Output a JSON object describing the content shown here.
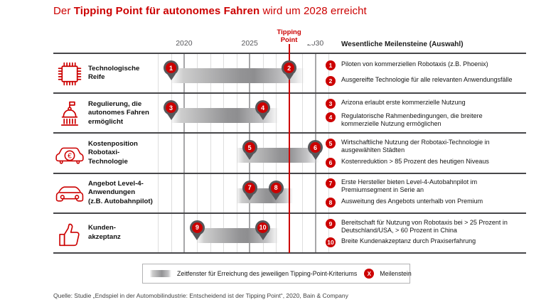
{
  "title": {
    "prefix": "Der ",
    "highlight": "Tipping Point für autonomes Fahren",
    "suffix": " wird um 2028 erreicht"
  },
  "milestones_header": "Wesentliche Meilensteine (Auswahl)",
  "legend": {
    "window_label": "Zeitfenster für Erreichung des jeweiligen Tipping-Point-Kriteriums",
    "milestone_symbol": "X",
    "milestone_label": "Meilenstein"
  },
  "source": "Quelle: Studie „Endspiel in der Automobilindustrie: Entscheidend ist der Tipping Point“, 2020, Bain & Company",
  "colors": {
    "red": "#cc0000",
    "pin_gray": "#57575a",
    "grid_light": "#dedede",
    "grid_heavy": "#a7a7a9",
    "separator": "#47474a"
  },
  "chart_data": {
    "type": "timeline",
    "title": "Der Tipping Point für autonomes Fahren wird um 2028 erreicht",
    "axis": {
      "year_min": 2018,
      "year_max": 2031,
      "tick_years": [
        2020,
        2025,
        2030
      ],
      "tipping_point_year": 2028,
      "tipping_point_label": "Tipping\nPoint"
    },
    "rows": [
      {
        "label": "Technologische\nReife",
        "icon": "chip-icon",
        "window": {
          "start": 2019,
          "end": 2029.2
        },
        "milestones": [
          {
            "n": "1",
            "year": 2019,
            "text": "Piloten von kommerziellen Robotaxis (z.B. Phoenix)"
          },
          {
            "n": "2",
            "year": 2028,
            "text": "Ausgereifte Technologie für alle relevanten Anwendungsfälle"
          }
        ]
      },
      {
        "label": "Regulierung, die\nautonomes Fahren\nermöglicht",
        "icon": "government-icon",
        "window": {
          "start": 2019,
          "end": 2027.2
        },
        "milestones": [
          {
            "n": "3",
            "year": 2019,
            "text": "Arizona erlaubt erste kommerzielle Nutzung"
          },
          {
            "n": "4",
            "year": 2026,
            "text": "Regulatorische Rahmenbedingungen, die breitere kommerzielle Nutzung ermöglichen"
          }
        ]
      },
      {
        "label": "Kostenposition\nRobotaxi-\nTechnologie",
        "icon": "car-euro-icon",
        "window": {
          "start": 2024,
          "end": 2030.3
        },
        "milestones": [
          {
            "n": "5",
            "year": 2025,
            "text": "Wirtschaftliche Nutzung der Robotaxi-Technologie in ausgewählten Städten"
          },
          {
            "n": "6",
            "year": 2030,
            "text": "Kostenreduktion > 85 Prozent des heutigen Niveaus"
          }
        ]
      },
      {
        "label": "Angebot Level-4-\nAnwendungen\n(z.B. Autobahnpilot)",
        "icon": "car-icon",
        "window": {
          "start": 2024,
          "end": 2028.3
        },
        "milestones": [
          {
            "n": "7",
            "year": 2025,
            "text": "Erste Hersteller bieten Level-4-Autobahnpilot im Premiumsegment in Serie an"
          },
          {
            "n": "8",
            "year": 2027,
            "text": "Ausweitung des Angebots unterhalb von Premium"
          }
        ]
      },
      {
        "label": "Kunden-\nakzeptanz",
        "icon": "thumbs-up-icon",
        "window": {
          "start": 2021,
          "end": 2027.2
        },
        "milestones": [
          {
            "n": "9",
            "year": 2021,
            "text": "Bereitschaft für Nutzung von Robotaxis bei > 25 Prozent in Deutschland/USA, > 60 Prozent in China"
          },
          {
            "n": "10",
            "year": 2026,
            "text": "Breite Kundenakzeptanz durch Praxiserfahrung"
          }
        ]
      }
    ]
  }
}
